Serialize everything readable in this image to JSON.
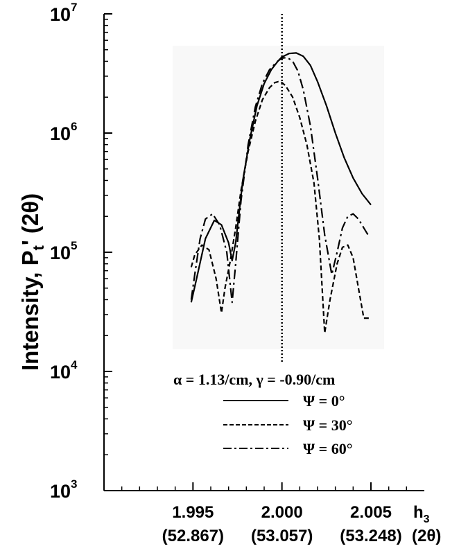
{
  "chart_data": {
    "type": "line",
    "y_scale": "log",
    "ylim": [
      1000,
      10000000
    ],
    "xlim": [
      1.99,
      2.008
    ],
    "y_ticks": [
      {
        "base": "10",
        "exp": "3",
        "value": 1000
      },
      {
        "base": "10",
        "exp": "4",
        "value": 10000
      },
      {
        "base": "10",
        "exp": "5",
        "value": 100000
      },
      {
        "base": "10",
        "exp": "6",
        "value": 1000000
      },
      {
        "base": "10",
        "exp": "7",
        "value": 10000000
      }
    ],
    "x_ticks": [
      {
        "value": 1.995,
        "label": "1.995",
        "sublabel": "(52.867)"
      },
      {
        "value": 2.0,
        "label": "2.000",
        "sublabel": "(53.057)"
      },
      {
        "value": 2.005,
        "label": "2.005",
        "sublabel": "(53.248)"
      }
    ],
    "xlabel": "h",
    "xlabel_sub": "3",
    "xlabel_unit": "(2θ)",
    "ylabel_main": "Intensity, P",
    "ylabel_sub": "t",
    "ylabel_suffix": "' (2θ)",
    "reference_line_x": 2.0,
    "grid": false,
    "legend_title": "α = 1.13/cm, γ = -0.90/cm",
    "legend_placement": "bottom-center",
    "series": [
      {
        "label": "Ψ = 0°",
        "style": "solid",
        "color": "#000000",
        "x": [
          1.9949,
          1.9952,
          1.9957,
          1.9962,
          1.9966,
          1.997,
          1.9972,
          1.9974,
          1.9978,
          1.9982,
          1.9986,
          1.999,
          1.9994,
          1.9998,
          2.0,
          2.0004,
          2.0008,
          2.0012,
          2.0016,
          2.002,
          2.0025,
          2.003,
          2.0035,
          2.004,
          2.0045,
          2.005
        ],
        "y": [
          38000,
          60000,
          130000,
          185000,
          170000,
          120000,
          85000,
          120000,
          400000,
          900000,
          1700000,
          2600000,
          3400000,
          4050000,
          4350000,
          4650000,
          4700000,
          4400000,
          3700000,
          2700000,
          1700000,
          1000000,
          620000,
          420000,
          310000,
          250000
        ]
      },
      {
        "label": "Ψ = 30°",
        "style": "dashed",
        "color": "#000000",
        "x": [
          1.9949,
          1.9951,
          1.9955,
          1.9959,
          1.9963,
          1.9966,
          1.9968,
          1.9971,
          1.9974,
          1.9977,
          1.9981,
          1.9985,
          1.9989,
          1.9993,
          1.9996,
          1.9998,
          2.0,
          2.0002,
          2.0006,
          2.001,
          2.0014,
          2.0018,
          2.0021,
          2.0024,
          2.0027,
          2.0031,
          2.0034,
          2.0037,
          2.004,
          2.0043,
          2.0046,
          2.0049
        ],
        "y": [
          75000,
          95000,
          115000,
          105000,
          60000,
          31000,
          50000,
          85000,
          160000,
          330000,
          700000,
          1250000,
          1900000,
          2400000,
          2650000,
          2700000,
          2650000,
          2500000,
          2000000,
          1350000,
          800000,
          380000,
          130000,
          21000,
          40000,
          80000,
          110000,
          115000,
          90000,
          50000,
          28000,
          28000
        ]
      },
      {
        "label": "Ψ = 60°",
        "style": "dashdot",
        "color": "#000000",
        "x": [
          1.9949,
          1.9951,
          1.9954,
          1.9957,
          1.9961,
          1.9965,
          1.9969,
          1.9972,
          1.9974,
          1.9977,
          1.9981,
          1.9985,
          1.9989,
          1.9993,
          1.9997,
          2.0,
          2.0003,
          2.0006,
          2.0009,
          2.0012,
          2.0016,
          2.002,
          2.0024,
          2.0028,
          2.0031,
          2.0034,
          2.0037,
          2.004,
          2.0043,
          2.0046,
          2.0049
        ],
        "y": [
          40000,
          65000,
          130000,
          190000,
          210000,
          170000,
          100000,
          38000,
          80000,
          270000,
          800000,
          1650000,
          2600000,
          3400000,
          3950000,
          4250000,
          4300000,
          4000000,
          3300000,
          2300000,
          1150000,
          420000,
          140000,
          65000,
          100000,
          160000,
          200000,
          210000,
          190000,
          160000,
          135000
        ]
      }
    ]
  }
}
